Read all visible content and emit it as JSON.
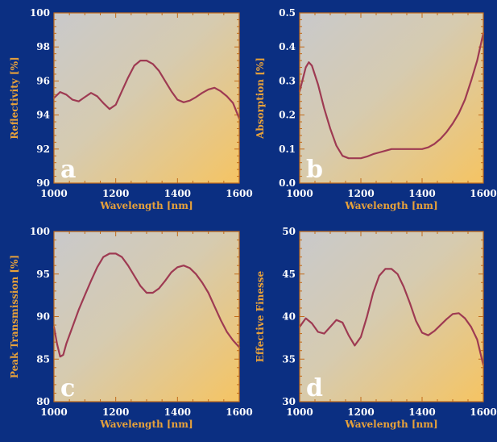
{
  "colors": {
    "page_background": "#0b2f82",
    "plot_gradient_start": "#c9c9cb",
    "plot_gradient_end": "#f5c463",
    "line": "#9e3a52",
    "frame": "#c06a1a",
    "tick_labels": "#ffffff",
    "axis_titles": "#e8a23a",
    "panel_letters": "#ffffff"
  },
  "chart_data": [
    {
      "type": "line",
      "panel": "a",
      "xlabel": "Wavelength [nm]",
      "ylabel": "Reflectivity [%]",
      "xlim": [
        1000,
        1600
      ],
      "ylim": [
        90,
        100
      ],
      "xticks": [
        1000,
        1200,
        1400,
        1600
      ],
      "yticks": [
        90,
        92,
        94,
        96,
        98,
        100
      ],
      "grid": false,
      "series": [
        {
          "x": [
            1000,
            1020,
            1040,
            1060,
            1080,
            1100,
            1120,
            1140,
            1160,
            1180,
            1200,
            1220,
            1240,
            1260,
            1280,
            1300,
            1320,
            1340,
            1360,
            1380,
            1400,
            1420,
            1440,
            1460,
            1480,
            1500,
            1520,
            1540,
            1560,
            1580,
            1600
          ],
          "y": [
            95.0,
            95.35,
            95.2,
            94.9,
            94.8,
            95.05,
            95.3,
            95.1,
            94.7,
            94.35,
            94.6,
            95.4,
            96.2,
            96.9,
            97.2,
            97.2,
            97.0,
            96.6,
            96.0,
            95.4,
            94.9,
            94.75,
            94.85,
            95.05,
            95.3,
            95.5,
            95.6,
            95.4,
            95.1,
            94.7,
            93.8
          ]
        }
      ]
    },
    {
      "type": "line",
      "panel": "b",
      "xlabel": "Wavelength [nm]",
      "ylabel": "Absorption [%]",
      "xlim": [
        1000,
        1600
      ],
      "ylim": [
        0.0,
        0.5
      ],
      "xticks": [
        1000,
        1200,
        1400,
        1600
      ],
      "yticks": [
        0.0,
        0.1,
        0.2,
        0.3,
        0.4,
        0.5
      ],
      "grid": false,
      "series": [
        {
          "x": [
            1000,
            1020,
            1030,
            1040,
            1060,
            1080,
            1100,
            1120,
            1140,
            1160,
            1180,
            1200,
            1220,
            1240,
            1260,
            1280,
            1300,
            1320,
            1340,
            1360,
            1380,
            1400,
            1420,
            1440,
            1460,
            1480,
            1500,
            1520,
            1540,
            1560,
            1580,
            1600
          ],
          "y": [
            0.27,
            0.34,
            0.355,
            0.345,
            0.29,
            0.22,
            0.16,
            0.11,
            0.08,
            0.073,
            0.073,
            0.073,
            0.078,
            0.085,
            0.09,
            0.095,
            0.1,
            0.1,
            0.1,
            0.1,
            0.1,
            0.1,
            0.105,
            0.115,
            0.13,
            0.15,
            0.175,
            0.205,
            0.245,
            0.3,
            0.36,
            0.44
          ]
        }
      ]
    },
    {
      "type": "line",
      "panel": "c",
      "xlabel": "Wavelength [nm]",
      "ylabel": "Peak Transmission [%]",
      "xlim": [
        1000,
        1600
      ],
      "ylim": [
        80,
        100
      ],
      "xticks": [
        1000,
        1200,
        1400,
        1600
      ],
      "yticks": [
        80,
        85,
        90,
        95,
        100
      ],
      "grid": false,
      "series": [
        {
          "x": [
            1000,
            1010,
            1020,
            1030,
            1040,
            1060,
            1080,
            1100,
            1120,
            1140,
            1160,
            1180,
            1200,
            1220,
            1240,
            1260,
            1280,
            1300,
            1320,
            1340,
            1360,
            1380,
            1400,
            1420,
            1440,
            1460,
            1480,
            1500,
            1520,
            1540,
            1560,
            1580,
            1600
          ],
          "y": [
            88.8,
            86.8,
            85.3,
            85.5,
            86.8,
            88.8,
            90.8,
            92.5,
            94.2,
            95.8,
            97.0,
            97.4,
            97.4,
            97.0,
            96.0,
            94.8,
            93.6,
            92.8,
            92.8,
            93.3,
            94.2,
            95.2,
            95.8,
            96.0,
            95.7,
            95.0,
            94.0,
            92.8,
            91.2,
            89.6,
            88.2,
            87.2,
            86.4
          ]
        }
      ]
    },
    {
      "type": "line",
      "panel": "d",
      "xlabel": "Wavelength [nm]",
      "ylabel": "Effective Finesse",
      "xlim": [
        1000,
        1600
      ],
      "ylim": [
        30,
        50
      ],
      "xticks": [
        1000,
        1200,
        1400,
        1600
      ],
      "yticks": [
        30,
        35,
        40,
        45,
        50
      ],
      "grid": false,
      "series": [
        {
          "x": [
            1000,
            1020,
            1040,
            1060,
            1080,
            1100,
            1120,
            1140,
            1160,
            1180,
            1200,
            1220,
            1240,
            1260,
            1280,
            1300,
            1320,
            1340,
            1360,
            1380,
            1400,
            1420,
            1440,
            1460,
            1480,
            1500,
            1520,
            1540,
            1560,
            1580,
            1600
          ],
          "y": [
            38.8,
            39.8,
            39.2,
            38.2,
            38.0,
            38.8,
            39.6,
            39.3,
            37.8,
            36.6,
            37.6,
            40.0,
            42.8,
            44.8,
            45.6,
            45.6,
            45.0,
            43.5,
            41.6,
            39.5,
            38.1,
            37.8,
            38.3,
            39.0,
            39.7,
            40.3,
            40.4,
            39.8,
            38.8,
            37.3,
            34.3
          ]
        }
      ]
    }
  ]
}
